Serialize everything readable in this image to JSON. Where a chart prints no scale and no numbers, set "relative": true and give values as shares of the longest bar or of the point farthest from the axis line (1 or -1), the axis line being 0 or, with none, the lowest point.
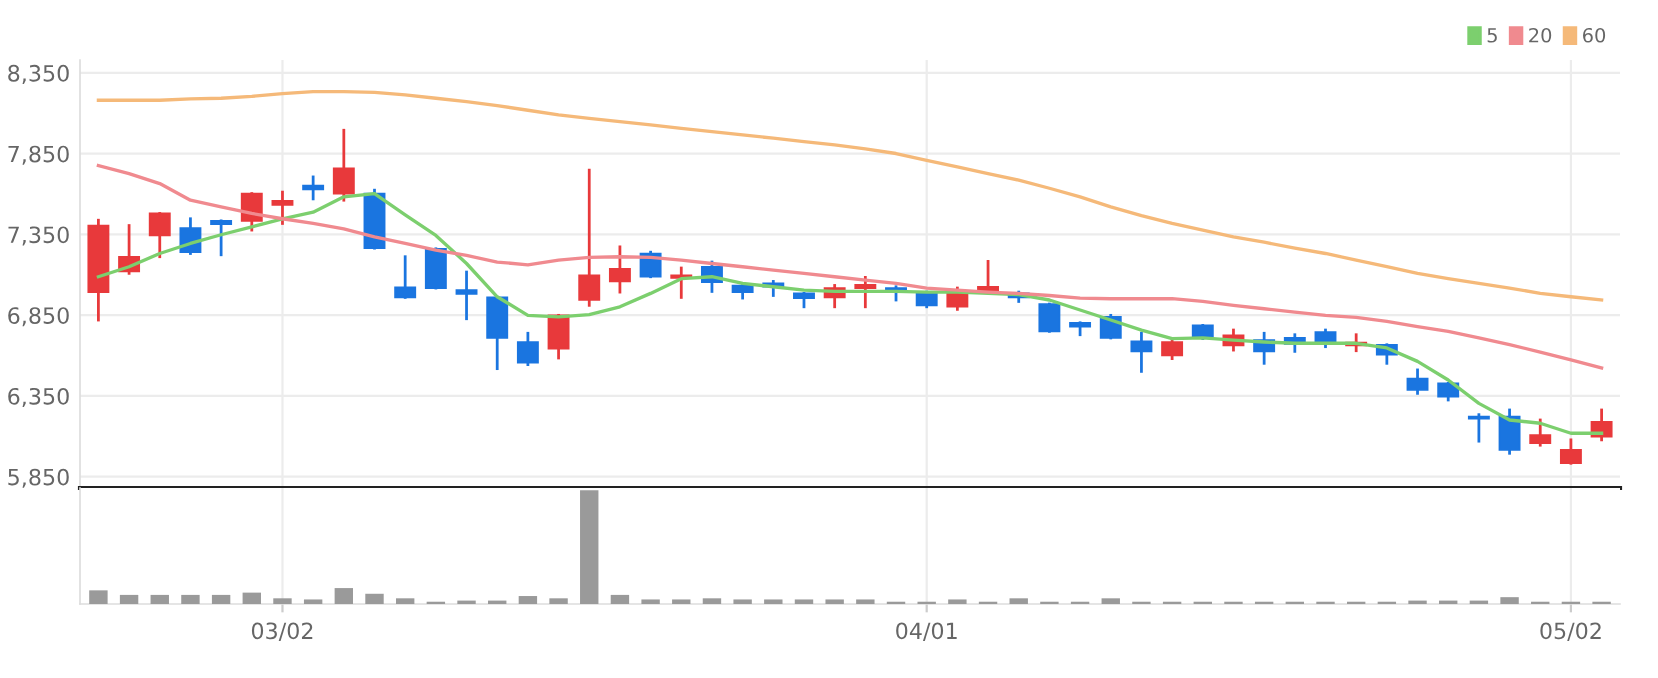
{
  "chart_data": [
    {
      "type": "candlestick",
      "categories": [
        null,
        null,
        null,
        null,
        null,
        null,
        null,
        null,
        null,
        null,
        null,
        null,
        null,
        null,
        null,
        null,
        null,
        null,
        null,
        null,
        null,
        null,
        null,
        null,
        null,
        null,
        null,
        null,
        null,
        null,
        null,
        null,
        null,
        null,
        null,
        null,
        null,
        null,
        null,
        null,
        null,
        null,
        null,
        null,
        null,
        null,
        null,
        null,
        null,
        null
      ],
      "ohlc": [
        [
          6993,
          7438,
          6820,
          7405
        ],
        [
          7121,
          7405,
          7109,
          7212
        ],
        [
          7344,
          7480,
          7212,
          7480
        ],
        [
          7389,
          7447,
          7232,
          7240
        ],
        [
          7434,
          7434,
          7224,
          7414
        ],
        [
          7434,
          7603,
          7377,
          7603
        ],
        [
          7533,
          7612,
          7418,
          7558
        ],
        [
          7653,
          7706,
          7570,
          7628
        ],
        [
          7603,
          7995,
          7562,
          7760
        ],
        [
          7603,
          7624,
          7265,
          7265
        ],
        [
          7022,
          7212,
          6960,
          6960
        ],
        [
          7261,
          7261,
          7018,
          7018
        ],
        [
          7005,
          7117,
          6828,
          6981
        ],
        [
          6960,
          6960,
          6519,
          6709
        ],
        [
          6684,
          6738,
          6544,
          6556
        ],
        [
          6643,
          6849,
          6585,
          6849
        ],
        [
          6944,
          7748,
          6911,
          7096
        ],
        [
          7059,
          7273,
          6993,
          7137
        ],
        [
          7232,
          7240,
          7088,
          7088
        ],
        [
          7080,
          7142,
          6960,
          7096
        ],
        [
          7150,
          7179,
          6997,
          7055
        ],
        [
          7034,
          7034,
          6956,
          6993
        ],
        [
          7047,
          7059,
          6972,
          7026
        ],
        [
          6985,
          6985,
          6902,
          6956
        ],
        [
          6960,
          7034,
          6902,
          7018
        ],
        [
          7018,
          7084,
          6902,
          7038
        ],
        [
          7018,
          7026,
          6944,
          6997
        ],
        [
          6985,
          6993,
          6902,
          6911
        ],
        [
          6902,
          7018,
          6886,
          6993
        ],
        [
          7005,
          7183,
          7005,
          7026
        ],
        [
          6985,
          6993,
          6935,
          6960
        ],
        [
          6919,
          6919,
          6750,
          6750
        ],
        [
          6803,
          6803,
          6729,
          6779
        ],
        [
          6840,
          6849,
          6709,
          6709
        ],
        [
          6688,
          6738,
          6502,
          6626
        ],
        [
          6601,
          6696,
          6581,
          6684
        ],
        [
          6787,
          6787,
          6705,
          6717
        ],
        [
          6663,
          6758,
          6634,
          6725
        ],
        [
          6696,
          6738,
          6552,
          6626
        ],
        [
          6709,
          6729,
          6626,
          6672
        ],
        [
          6746,
          6758,
          6655,
          6676
        ],
        [
          6663,
          6729,
          6630,
          6680
        ],
        [
          6667,
          6667,
          6552,
          6606
        ],
        [
          6457,
          6511,
          6366,
          6387
        ],
        [
          6428,
          6428,
          6325,
          6346
        ],
        [
          6222,
          6234,
          6070,
          6210
        ],
        [
          6222,
          6263,
          5995,
          6016
        ],
        [
          6057,
          6201,
          6045,
          6107
        ],
        [
          5933,
          6078,
          5933,
          6016
        ],
        [
          6098,
          6263,
          6078,
          6189
        ]
      ],
      "colors": [
        "#e8393b",
        "#e8393b",
        "#e8393b",
        "#1a75e0",
        "#1a75e0",
        "#e8393b",
        "#e8393b",
        "#1a75e0",
        "#e8393b",
        "#1a75e0",
        "#1a75e0",
        "#1a75e0",
        "#1a75e0",
        "#1a75e0",
        "#1a75e0",
        "#e8393b",
        "#e8393b",
        "#e8393b",
        "#1a75e0",
        "#e8393b",
        "#1a75e0",
        "#1a75e0",
        "#1a75e0",
        "#1a75e0",
        "#e8393b",
        "#e8393b",
        "#1a75e0",
        "#1a75e0",
        "#e8393b",
        "#e8393b",
        "#1a75e0",
        "#1a75e0",
        "#1a75e0",
        "#1a75e0",
        "#1a75e0",
        "#e8393b",
        "#1a75e0",
        "#e8393b",
        "#1a75e0",
        "#1a75e0",
        "#1a75e0",
        "#e8393b",
        "#1a75e0",
        "#1a75e0",
        "#1a75e0",
        "#1a75e0",
        "#1a75e0",
        "#e8393b",
        "#e8393b",
        "#e8393b"
      ],
      "series": [
        {
          "type": "line",
          "name": "5",
          "color": "#7ccf6e",
          "values": [
            7088,
            7150,
            7232,
            7294,
            7348,
            7397,
            7447,
            7488,
            7583,
            7603,
            7471,
            7344,
            7170,
            6964,
            6849,
            6840,
            6853,
            6902,
            6985,
            7076,
            7088,
            7047,
            7026,
            7005,
            6997,
            6997,
            6997,
            6993,
            6993,
            6985,
            6977,
            6944,
            6882,
            6820,
            6758,
            6705,
            6709,
            6696,
            6684,
            6676,
            6676,
            6676,
            6647,
            6564,
            6449,
            6304,
            6201,
            6181,
            6119,
            6119
          ]
        },
        {
          "type": "line",
          "name": "20",
          "color": "#f08a8f",
          "values": [
            7776,
            7727,
            7665,
            7562,
            7521,
            7480,
            7447,
            7418,
            7385,
            7335,
            7294,
            7253,
            7220,
            7179,
            7162,
            7191,
            7208,
            7212,
            7208,
            7191,
            7170,
            7150,
            7129,
            7109,
            7088,
            7067,
            7047,
            7018,
            7005,
            6993,
            6985,
            6972,
            6956,
            6952,
            6952,
            6952,
            6935,
            6911,
            6890,
            6869,
            6849,
            6836,
            6812,
            6779,
            6750,
            6709,
            6667,
            6622,
            6573,
            6523
          ]
        },
        {
          "type": "line",
          "name": "60",
          "color": "#f5b979",
          "values": [
            8181,
            8181,
            8181,
            8189,
            8193,
            8205,
            8222,
            8234,
            8234,
            8230,
            8214,
            8193,
            8172,
            8148,
            8119,
            8090,
            8069,
            8049,
            8028,
            8007,
            7987,
            7966,
            7946,
            7925,
            7904,
            7880,
            7851,
            7809,
            7768,
            7727,
            7686,
            7636,
            7583,
            7521,
            7467,
            7418,
            7377,
            7335,
            7302,
            7265,
            7232,
            7191,
            7150,
            7109,
            7076,
            7047,
            7018,
            6985,
            6964,
            6944
          ]
        }
      ],
      "ylim": [
        5780,
        8430
      ],
      "yticks": [
        {
          "value": 5850,
          "label": "5,850"
        },
        {
          "value": 6350,
          "label": "6,350"
        },
        {
          "value": 6850,
          "label": "6,850"
        },
        {
          "value": 7350,
          "label": "7,350"
        },
        {
          "value": 7850,
          "label": "7,850"
        },
        {
          "value": 8350,
          "label": "8,350"
        }
      ],
      "grid": true,
      "legend": "top right",
      "tick_labels": "y"
    },
    {
      "type": "bar",
      "relative": true,
      "color": "#9a9a9a",
      "categories": [
        null,
        null,
        null,
        null,
        null,
        null,
        "03/02",
        null,
        null,
        null,
        null,
        null,
        null,
        null,
        null,
        null,
        null,
        null,
        null,
        null,
        null,
        null,
        null,
        null,
        null,
        null,
        null,
        "04/01",
        null,
        null,
        null,
        null,
        null,
        null,
        null,
        null,
        null,
        null,
        null,
        null,
        null,
        null,
        null,
        null,
        null,
        null,
        null,
        null,
        "05/02",
        null
      ],
      "values": [
        0.12,
        0.08,
        0.08,
        0.08,
        0.08,
        0.1,
        0.05,
        0.04,
        0.14,
        0.09,
        0.05,
        0.02,
        0.03,
        0.03,
        0.07,
        0.05,
        1,
        0.08,
        0.04,
        0.04,
        0.05,
        0.04,
        0.04,
        0.04,
        0.04,
        0.04,
        0.02,
        0.02,
        0.04,
        0.02,
        0.05,
        0.02,
        0.02,
        0.05,
        0.02,
        0.02,
        0.02,
        0.02,
        0.02,
        0.02,
        0.02,
        0.02,
        0.02,
        0.03,
        0.03,
        0.03,
        0.06,
        0.02,
        0.02,
        0.02
      ],
      "grid": "x",
      "tick_labels": "x"
    }
  ]
}
